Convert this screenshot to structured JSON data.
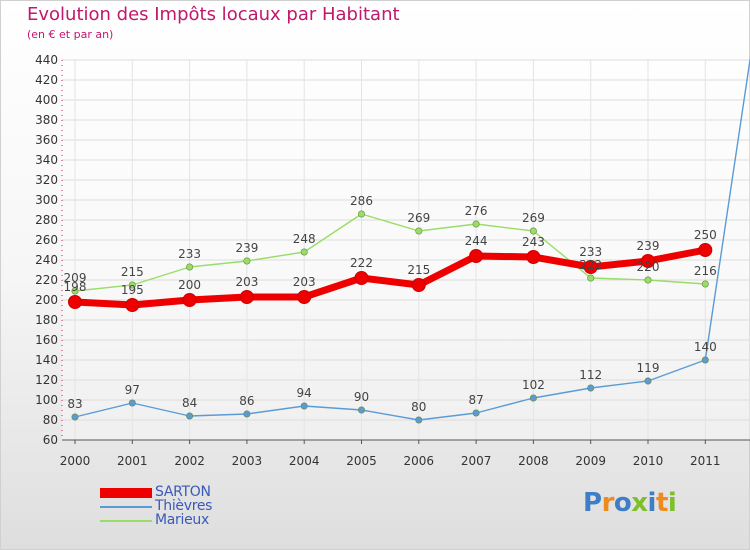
{
  "title": "Evolution des Impôts locaux par Habitant",
  "subtitle": "(en € et par an)",
  "logo_text": "Proxiti",
  "chart_data": {
    "type": "line",
    "title": "Evolution des Impôts locaux par Habitant",
    "subtitle": "(en € et par an)",
    "xlabel": "",
    "ylabel": "",
    "categories": [
      "2000",
      "2001",
      "2002",
      "2003",
      "2004",
      "2005",
      "2006",
      "2007",
      "2008",
      "2009",
      "2010",
      "2011"
    ],
    "ylim": [
      60,
      440
    ],
    "ytick_step": 20,
    "yticks": [
      "60",
      "80",
      "100",
      "120",
      "140",
      "160",
      "180",
      "200",
      "220",
      "240",
      "260",
      "280",
      "300",
      "320",
      "340",
      "360",
      "380",
      "400",
      "420",
      "440"
    ],
    "grid": true,
    "legend_position": "bottom-left",
    "series": [
      {
        "name": "SARTON",
        "color": "#ee0000",
        "values": [
          198,
          195,
          200,
          203,
          203,
          222,
          215,
          244,
          243,
          233,
          239,
          250
        ],
        "labels": [
          "198",
          "195",
          "200",
          "203",
          "203",
          "222",
          "215",
          "244",
          "243",
          "233",
          "239",
          "250"
        ]
      },
      {
        "name": "Thièvres",
        "color": "#5b9bd5",
        "values": [
          83,
          97,
          84,
          86,
          94,
          90,
          80,
          87,
          102,
          112,
          119,
          140
        ],
        "labels": [
          "83",
          "97",
          "84",
          "86",
          "94",
          "90",
          "80",
          "87",
          "102",
          "112",
          "119",
          "140"
        ],
        "overflow_to": 440
      },
      {
        "name": "Marieux",
        "color": "#99dd66",
        "values": [
          209,
          215,
          233,
          239,
          248,
          286,
          269,
          276,
          269,
          222,
          220,
          216
        ],
        "labels": [
          "209",
          "215",
          "233",
          "239",
          "248",
          "286",
          "269",
          "276",
          "269",
          "222",
          "220",
          "216"
        ]
      }
    ]
  }
}
